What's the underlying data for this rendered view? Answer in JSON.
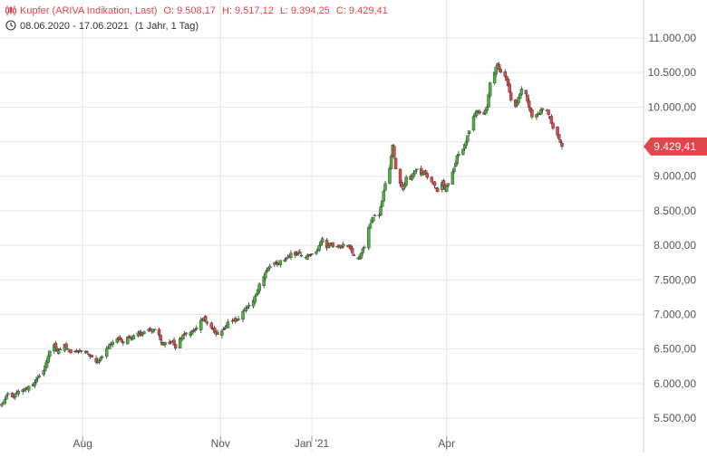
{
  "header": {
    "instrument": "Kupfer (ARIVA Indikation, Last)",
    "open": "O: 9.508,17",
    "high": "H: 9.517,12",
    "low": "L: 9.394,25",
    "close": "C: 9.429,41",
    "range": "08.06.2020 - 17.06.2021",
    "period": "(1 Jahr, 1 Tag)",
    "icons": [
      "candlestick-icon",
      "clock-icon"
    ]
  },
  "colors": {
    "up": "#4caf3c",
    "down": "#e0464b",
    "grid": "#e6e6e6",
    "axis_text": "#555555",
    "header_accent": "#e0464b",
    "last_price_tag": "#e0464b"
  },
  "chart_data": {
    "type": "candlestick",
    "title": "Kupfer (ARIVA Indikation, Last)",
    "xlim": [
      "2020-06-08",
      "2021-06-17"
    ],
    "ylim": [
      5300,
      11000
    ],
    "y_ticks": [
      5500,
      6000,
      6500,
      7000,
      7500,
      8000,
      8500,
      9000,
      9500,
      10000,
      10500,
      11000
    ],
    "y_tick_labels": [
      "5.500,00",
      "6.000,00",
      "6.500,00",
      "7.000,00",
      "7.500,00",
      "8.000,00",
      "8.500,00",
      "9.000,00",
      "9.500,00",
      "10.000,00",
      "10.500,00",
      "11.000,00"
    ],
    "x_ticks": [
      {
        "date": "2020-08-01",
        "label": "Aug"
      },
      {
        "date": "2020-11-01",
        "label": "Nov"
      },
      {
        "date": "2021-01-01",
        "label": "Jan '21"
      },
      {
        "date": "2021-04-01",
        "label": "Apr"
      }
    ],
    "grid": true,
    "y_axis_side": "right",
    "last_value": 9429.41,
    "last_value_label": "9.429,41",
    "closes": [
      [
        "2020-06-08",
        5700
      ],
      [
        "2020-06-10",
        5760
      ],
      [
        "2020-06-12",
        5850
      ],
      [
        "2020-06-15",
        5800
      ],
      [
        "2020-06-17",
        5840
      ],
      [
        "2020-06-19",
        5880
      ],
      [
        "2020-06-22",
        5900
      ],
      [
        "2020-06-24",
        5920
      ],
      [
        "2020-06-26",
        5960
      ],
      [
        "2020-06-29",
        6000
      ],
      [
        "2020-07-01",
        6050
      ],
      [
        "2020-07-03",
        6100
      ],
      [
        "2020-07-06",
        6200
      ],
      [
        "2020-07-08",
        6320
      ],
      [
        "2020-07-10",
        6480
      ],
      [
        "2020-07-13",
        6570
      ],
      [
        "2020-07-15",
        6450
      ],
      [
        "2020-07-17",
        6500
      ],
      [
        "2020-07-20",
        6560
      ],
      [
        "2020-07-22",
        6500
      ],
      [
        "2020-07-24",
        6450
      ],
      [
        "2020-07-27",
        6470
      ],
      [
        "2020-07-29",
        6460
      ],
      [
        "2020-07-31",
        6480
      ],
      [
        "2020-08-03",
        6470
      ],
      [
        "2020-08-05",
        6420
      ],
      [
        "2020-08-07",
        6380
      ],
      [
        "2020-08-10",
        6300
      ],
      [
        "2020-08-12",
        6350
      ],
      [
        "2020-08-14",
        6400
      ],
      [
        "2020-08-17",
        6500
      ],
      [
        "2020-08-19",
        6560
      ],
      [
        "2020-08-21",
        6600
      ],
      [
        "2020-08-24",
        6650
      ],
      [
        "2020-08-26",
        6620
      ],
      [
        "2020-08-28",
        6600
      ],
      [
        "2020-08-31",
        6680
      ],
      [
        "2020-09-02",
        6650
      ],
      [
        "2020-09-04",
        6700
      ],
      [
        "2020-09-07",
        6740
      ],
      [
        "2020-09-09",
        6700
      ],
      [
        "2020-09-11",
        6750
      ],
      [
        "2020-09-14",
        6780
      ],
      [
        "2020-09-16",
        6760
      ],
      [
        "2020-09-18",
        6800
      ],
      [
        "2020-09-21",
        6700
      ],
      [
        "2020-09-23",
        6560
      ],
      [
        "2020-09-25",
        6600
      ],
      [
        "2020-09-28",
        6580
      ],
      [
        "2020-09-30",
        6620
      ],
      [
        "2020-10-02",
        6500
      ],
      [
        "2020-10-05",
        6650
      ],
      [
        "2020-10-07",
        6700
      ],
      [
        "2020-10-09",
        6720
      ],
      [
        "2020-10-12",
        6730
      ],
      [
        "2020-10-14",
        6760
      ],
      [
        "2020-10-16",
        6790
      ],
      [
        "2020-10-19",
        6920
      ],
      [
        "2020-10-21",
        6950
      ],
      [
        "2020-10-23",
        6860
      ],
      [
        "2020-10-26",
        6800
      ],
      [
        "2020-10-28",
        6750
      ],
      [
        "2020-10-30",
        6720
      ],
      [
        "2020-11-02",
        6770
      ],
      [
        "2020-11-04",
        6800
      ],
      [
        "2020-11-06",
        6880
      ],
      [
        "2020-11-09",
        6920
      ],
      [
        "2020-11-11",
        6900
      ],
      [
        "2020-11-13",
        6950
      ],
      [
        "2020-11-16",
        7050
      ],
      [
        "2020-11-18",
        7080
      ],
      [
        "2020-11-20",
        7120
      ],
      [
        "2020-11-23",
        7200
      ],
      [
        "2020-11-25",
        7300
      ],
      [
        "2020-11-27",
        7450
      ],
      [
        "2020-11-30",
        7550
      ],
      [
        "2020-12-02",
        7640
      ],
      [
        "2020-12-04",
        7700
      ],
      [
        "2020-12-07",
        7740
      ],
      [
        "2020-12-09",
        7720
      ],
      [
        "2020-12-11",
        7780
      ],
      [
        "2020-12-14",
        7800
      ],
      [
        "2020-12-16",
        7830
      ],
      [
        "2020-12-18",
        7880
      ],
      [
        "2020-12-21",
        7860
      ],
      [
        "2020-12-23",
        7900
      ],
      [
        "2020-12-28",
        7820
      ],
      [
        "2020-12-30",
        7850
      ],
      [
        "2021-01-04",
        7900
      ],
      [
        "2021-01-06",
        8000
      ],
      [
        "2021-01-08",
        8110
      ],
      [
        "2021-01-11",
        7950
      ],
      [
        "2021-01-13",
        8050
      ],
      [
        "2021-01-15",
        7980
      ],
      [
        "2021-01-18",
        8000
      ],
      [
        "2021-01-20",
        7980
      ],
      [
        "2021-01-22",
        8010
      ],
      [
        "2021-01-25",
        7980
      ],
      [
        "2021-01-27",
        7950
      ],
      [
        "2021-01-29",
        7850
      ],
      [
        "2021-02-01",
        7800
      ],
      [
        "2021-02-03",
        7900
      ],
      [
        "2021-02-05",
        7980
      ],
      [
        "2021-02-08",
        8250
      ],
      [
        "2021-02-10",
        8380
      ],
      [
        "2021-02-12",
        8420
      ],
      [
        "2021-02-15",
        8450
      ],
      [
        "2021-02-17",
        8650
      ],
      [
        "2021-02-19",
        8900
      ],
      [
        "2021-02-22",
        9120
      ],
      [
        "2021-02-24",
        9450
      ],
      [
        "2021-02-26",
        9100
      ],
      [
        "2021-03-01",
        8900
      ],
      [
        "2021-03-03",
        8800
      ],
      [
        "2021-03-05",
        9000
      ],
      [
        "2021-03-08",
        8950
      ],
      [
        "2021-03-10",
        9050
      ],
      [
        "2021-03-12",
        9100
      ],
      [
        "2021-03-15",
        9020
      ],
      [
        "2021-03-17",
        9080
      ],
      [
        "2021-03-19",
        8980
      ],
      [
        "2021-03-22",
        8920
      ],
      [
        "2021-03-24",
        8850
      ],
      [
        "2021-03-26",
        8780
      ],
      [
        "2021-03-29",
        8900
      ],
      [
        "2021-03-31",
        8820
      ],
      [
        "2021-04-02",
        8900
      ],
      [
        "2021-04-06",
        9100
      ],
      [
        "2021-04-08",
        9300
      ],
      [
        "2021-04-12",
        9400
      ],
      [
        "2021-04-14",
        9500
      ],
      [
        "2021-04-16",
        9650
      ],
      [
        "2021-04-19",
        9850
      ],
      [
        "2021-04-21",
        9950
      ],
      [
        "2021-04-23",
        9900
      ],
      [
        "2021-04-26",
        9900
      ],
      [
        "2021-04-28",
        10000
      ],
      [
        "2021-04-30",
        10350
      ],
      [
        "2021-05-03",
        10520
      ],
      [
        "2021-05-05",
        10620
      ],
      [
        "2021-05-07",
        10500
      ],
      [
        "2021-05-10",
        10450
      ],
      [
        "2021-05-12",
        10300
      ],
      [
        "2021-05-14",
        10100
      ],
      [
        "2021-05-17",
        10000
      ],
      [
        "2021-05-19",
        10150
      ],
      [
        "2021-05-21",
        10250
      ],
      [
        "2021-05-24",
        10180
      ],
      [
        "2021-05-26",
        10000
      ],
      [
        "2021-05-28",
        9850
      ],
      [
        "2021-06-01",
        9900
      ],
      [
        "2021-06-03",
        9950
      ],
      [
        "2021-06-07",
        9950
      ],
      [
        "2021-06-09",
        9850
      ],
      [
        "2021-06-11",
        9700
      ],
      [
        "2021-06-14",
        9600
      ],
      [
        "2021-06-17",
        9429.41
      ]
    ]
  }
}
